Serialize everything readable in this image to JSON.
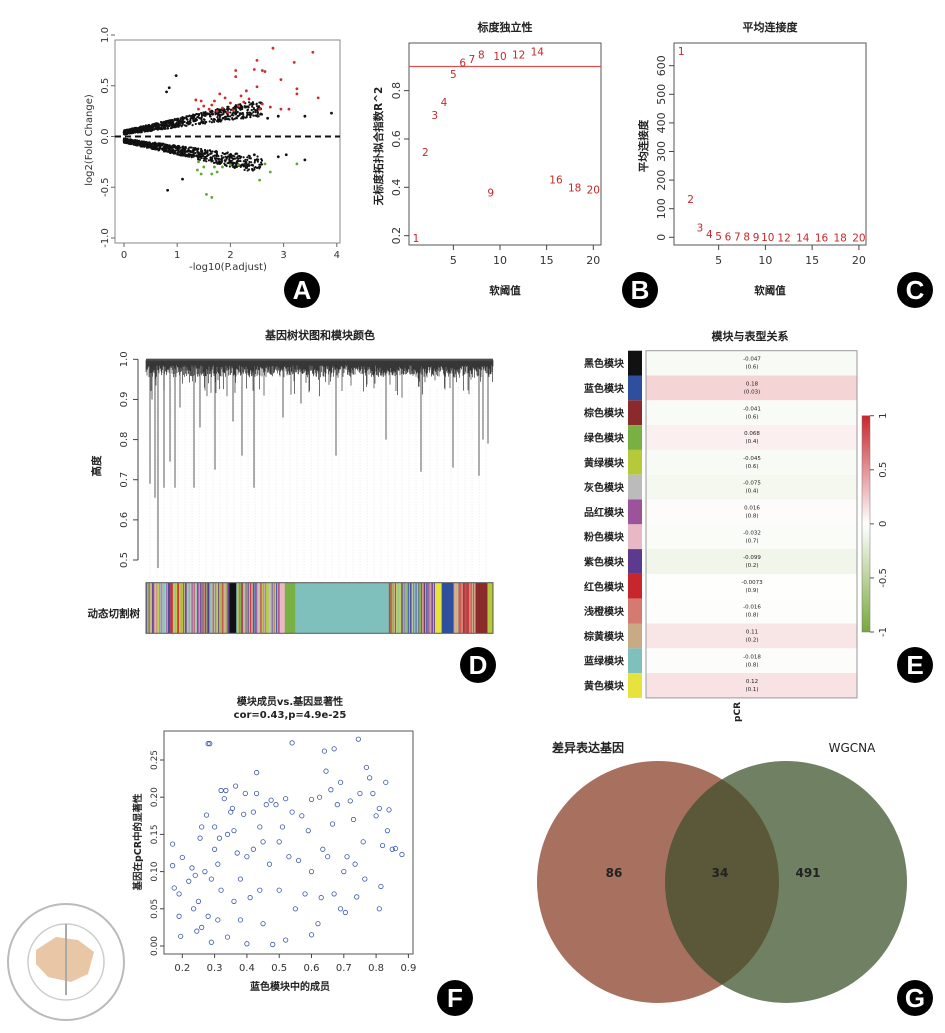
{
  "colors": {
    "red_points": "#d42a2a",
    "green_points": "#5fa832",
    "black_points": "#111111",
    "scatter_points": "#3b57a8",
    "threshold_line": "#d95050",
    "venn_left": "#a8705e",
    "venn_right": "#708062",
    "venn_overlap": "#5a5838"
  },
  "panel_letters": [
    "A",
    "B",
    "C",
    "D",
    "E",
    "F",
    "G"
  ],
  "logo": {
    "text_cn": "中华医学会",
    "text_en": "CHINESE MEDICAL ASSOCIATION",
    "year": "1915"
  },
  "chart_data": [
    {
      "panel": "A",
      "type": "scatter",
      "xlabel": "-log10(P.adjust)",
      "ylabel": "log2(Fold Change)",
      "xlim": [
        0,
        4
      ],
      "ylim": [
        -1.0,
        1.0
      ],
      "xticks": [
        "0",
        "1",
        "2",
        "3",
        "4"
      ],
      "yticks": [
        "-1.0",
        "-0.5",
        "0.0",
        "0.5",
        "1.0"
      ],
      "reference_line": {
        "y": 0,
        "style": "dashed"
      },
      "series": [
        {
          "color": "#d42a2a",
          "points": [
            [
              2.8,
              0.87
            ],
            [
              3.55,
              0.83
            ],
            [
              2.5,
              0.75
            ],
            [
              3.2,
              0.73
            ],
            [
              2.1,
              0.65
            ],
            [
              2.45,
              0.66
            ],
            [
              2.6,
              0.65
            ],
            [
              2.65,
              0.64
            ],
            [
              2.1,
              0.59
            ],
            [
              2.95,
              0.56
            ],
            [
              2.5,
              0.49
            ],
            [
              3.25,
              0.47
            ],
            [
              3.25,
              0.42
            ],
            [
              3.65,
              0.38
            ],
            [
              2.3,
              0.45
            ],
            [
              2.2,
              0.4
            ],
            [
              2.35,
              0.37
            ],
            [
              1.8,
              0.42
            ],
            [
              1.9,
              0.38
            ],
            [
              1.35,
              0.36
            ],
            [
              1.45,
              0.35
            ],
            [
              1.7,
              0.35
            ],
            [
              2.0,
              0.33
            ],
            [
              2.15,
              0.3
            ],
            [
              2.6,
              0.32
            ],
            [
              2.75,
              0.29
            ],
            [
              2.95,
              0.27
            ],
            [
              3.1,
              0.27
            ],
            [
              1.5,
              0.3
            ],
            [
              1.6,
              0.27
            ],
            [
              1.75,
              0.25
            ],
            [
              1.85,
              0.28
            ],
            [
              1.95,
              0.24
            ],
            [
              2.05,
              0.26
            ],
            [
              1.4,
              0.27
            ],
            [
              2.55,
              0.27
            ],
            [
              1.65,
              0.31
            ],
            [
              2.25,
              0.34
            ]
          ]
        },
        {
          "color": "#5fa832",
          "points": [
            [
              1.4,
              -0.25
            ],
            [
              1.5,
              -0.3
            ],
            [
              1.7,
              -0.3
            ],
            [
              1.85,
              -0.3
            ],
            [
              2.0,
              -0.28
            ],
            [
              2.15,
              -0.28
            ],
            [
              1.45,
              -0.37
            ],
            [
              1.65,
              -0.37
            ],
            [
              1.75,
              -0.35
            ],
            [
              2.65,
              -0.27
            ],
            [
              2.55,
              -0.43
            ],
            [
              2.75,
              -0.35
            ],
            [
              3.25,
              -0.27
            ],
            [
              1.55,
              -0.57
            ],
            [
              1.65,
              -0.6
            ],
            [
              1.38,
              -0.33
            ]
          ]
        },
        {
          "color": "#111111",
          "points": [
            [
              0.98,
              0.6
            ],
            [
              0.85,
              0.48
            ],
            [
              0.8,
              0.44
            ],
            [
              3.9,
              0.23
            ],
            [
              3.4,
              0.2
            ],
            [
              0.82,
              -0.53
            ],
            [
              1.1,
              -0.42
            ],
            [
              3.4,
              -0.23
            ],
            [
              2.9,
              0.2
            ],
            [
              2.7,
              0.18
            ],
            [
              2.9,
              -0.2
            ],
            [
              3.05,
              -0.18
            ],
            [
              2.45,
              -0.18
            ]
          ]
        }
      ]
    },
    {
      "panel": "B",
      "type": "scatter",
      "title": "标度独立性",
      "xlabel": "软阈值",
      "ylabel": "无标度拓扑拟合指数R^2",
      "xlim": [
        0,
        21
      ],
      "ylim": [
        0.17,
        0.99
      ],
      "xticks": [
        "5",
        "10",
        "15",
        "20"
      ],
      "yticks": [
        "0.2",
        "0.4",
        "0.6",
        "0.8"
      ],
      "reference_line": {
        "y": 0.9
      },
      "points": [
        [
          1,
          0.19
        ],
        [
          2,
          0.546
        ],
        [
          3,
          0.7
        ],
        [
          4,
          0.754
        ],
        [
          5,
          0.869
        ],
        [
          6,
          0.917
        ],
        [
          7,
          0.931
        ],
        [
          8,
          0.95
        ],
        [
          9,
          0.378
        ],
        [
          10,
          0.943
        ],
        [
          12,
          0.95
        ],
        [
          14,
          0.961
        ],
        [
          16,
          0.432
        ],
        [
          18,
          0.4
        ],
        [
          20,
          0.392
        ]
      ]
    },
    {
      "panel": "C",
      "type": "scatter",
      "title": "平均连接度",
      "xlabel": "软阈值",
      "ylabel": "平均连接度",
      "xlim": [
        0,
        21
      ],
      "ylim": [
        -25,
        680
      ],
      "xticks": [
        "5",
        "10",
        "15",
        "20"
      ],
      "yticks": [
        "0",
        "100",
        "200",
        "300",
        "400",
        "500",
        "600"
      ],
      "points": [
        [
          1,
          652
        ],
        [
          2,
          134
        ],
        [
          3,
          35
        ],
        [
          4,
          12
        ],
        [
          5,
          4
        ],
        [
          6,
          3
        ],
        [
          7,
          2
        ],
        [
          8,
          2
        ],
        [
          9,
          1
        ],
        [
          10,
          1
        ],
        [
          12,
          0
        ],
        [
          14,
          0
        ],
        [
          16,
          0
        ],
        [
          18,
          0
        ],
        [
          20,
          0
        ]
      ]
    },
    {
      "panel": "D",
      "type": "dendrogram",
      "title": "基因树状图和模块颜色",
      "ylabel": "高度",
      "color_row_label": "动态切割树",
      "ylim": [
        0.5,
        1.0
      ],
      "yticks": [
        "0.5",
        "0.6",
        "0.7",
        "0.8",
        "0.9",
        "1.0"
      ]
    },
    {
      "panel": "E",
      "type": "heatmap",
      "title": "模块与表型关系",
      "xlabel": "pCR",
      "color_scale": {
        "min": -1,
        "max": 1,
        "low": "#77a83b",
        "mid": "#ffffff",
        "high": "#c8262d",
        "ticks": [
          "-1",
          "-0.5",
          "0",
          "0.5",
          "1"
        ]
      },
      "rows": [
        {
          "label": "黑色模块",
          "color": "#111111",
          "cor": "-0.047",
          "p": "(0.6)"
        },
        {
          "label": "蓝色模块",
          "color": "#2d4f9e",
          "cor": "0.18",
          "p": "(0.03)"
        },
        {
          "label": "棕色模块",
          "color": "#8b2a2a",
          "cor": "-0.041",
          "p": "(0.6)"
        },
        {
          "label": "绿色模块",
          "color": "#78b043",
          "cor": "0.068",
          "p": "(0.4)"
        },
        {
          "label": "黄绿模块",
          "color": "#b5c93a",
          "cor": "-0.045",
          "p": "(0.6)"
        },
        {
          "label": "灰色模块",
          "color": "#bbbbbb",
          "cor": "-0.075",
          "p": "(0.4)"
        },
        {
          "label": "品红模块",
          "color": "#9b539b",
          "cor": "0.016",
          "p": "(0.8)"
        },
        {
          "label": "粉色模块",
          "color": "#e8b8c4",
          "cor": "-0.032",
          "p": "(0.7)"
        },
        {
          "label": "紫色模块",
          "color": "#5b3a8f",
          "cor": "-0.099",
          "p": "(0.2)"
        },
        {
          "label": "红色模块",
          "color": "#c8262d",
          "cor": "-0.0073",
          "p": "(0.9)"
        },
        {
          "label": "浅橙模块",
          "color": "#d47a70",
          "cor": "-0.016",
          "p": "(0.8)"
        },
        {
          "label": "棕黄模块",
          "color": "#c8ab85",
          "cor": "0.11",
          "p": "(0.2)"
        },
        {
          "label": "蓝绿模块",
          "color": "#7fbfbc",
          "cor": "-0.018",
          "p": "(0.8)"
        },
        {
          "label": "黄色模块",
          "color": "#e8e23c",
          "cor": "0.12",
          "p": "(0.1)"
        }
      ]
    },
    {
      "panel": "F",
      "type": "scatter",
      "title": "模块成员vs.基因显著性",
      "subtitle": "cor=0.43,p=4.9e-25",
      "xlabel": "蓝色模块中的成员",
      "ylabel": "基因在pCR中的显著性",
      "xlim": [
        0.14,
        0.91
      ],
      "ylim": [
        -0.01,
        0.29
      ],
      "xticks": [
        "0.2",
        "0.3",
        "0.4",
        "0.5",
        "0.6",
        "0.7",
        "0.8",
        "0.9"
      ],
      "yticks": [
        "0.00",
        "0.05",
        "0.10",
        "0.15",
        "0.20",
        "0.25"
      ],
      "points": [
        [
          0.17,
          0.137
        ],
        [
          0.17,
          0.108
        ],
        [
          0.175,
          0.078
        ],
        [
          0.19,
          0.07
        ],
        [
          0.19,
          0.04
        ],
        [
          0.195,
          0.013
        ],
        [
          0.2,
          0.119
        ],
        [
          0.22,
          0.087
        ],
        [
          0.23,
          0.105
        ],
        [
          0.235,
          0.05
        ],
        [
          0.24,
          0.095
        ],
        [
          0.245,
          0.02
        ],
        [
          0.25,
          0.06
        ],
        [
          0.255,
          0.145
        ],
        [
          0.26,
          0.16
        ],
        [
          0.26,
          0.025
        ],
        [
          0.27,
          0.1
        ],
        [
          0.275,
          0.176
        ],
        [
          0.28,
          0.272
        ],
        [
          0.285,
          0.272
        ],
        [
          0.28,
          0.04
        ],
        [
          0.29,
          0.005
        ],
        [
          0.29,
          0.09
        ],
        [
          0.3,
          0.16
        ],
        [
          0.3,
          0.13
        ],
        [
          0.31,
          0.11
        ],
        [
          0.31,
          0.035
        ],
        [
          0.315,
          0.145
        ],
        [
          0.32,
          0.209
        ],
        [
          0.32,
          0.075
        ],
        [
          0.33,
          0.198
        ],
        [
          0.335,
          0.209
        ],
        [
          0.34,
          0.15
        ],
        [
          0.34,
          0.012
        ],
        [
          0.35,
          0.18
        ],
        [
          0.355,
          0.185
        ],
        [
          0.36,
          0.155
        ],
        [
          0.36,
          0.06
        ],
        [
          0.365,
          0.215
        ],
        [
          0.37,
          0.125
        ],
        [
          0.38,
          0.09
        ],
        [
          0.38,
          0.035
        ],
        [
          0.39,
          0.177
        ],
        [
          0.395,
          0.205
        ],
        [
          0.4,
          0.12
        ],
        [
          0.4,
          0.003
        ],
        [
          0.41,
          0.065
        ],
        [
          0.42,
          0.13
        ],
        [
          0.42,
          0.18
        ],
        [
          0.43,
          0.233
        ],
        [
          0.43,
          0.205
        ],
        [
          0.44,
          0.16
        ],
        [
          0.44,
          0.075
        ],
        [
          0.45,
          0.14
        ],
        [
          0.45,
          0.03
        ],
        [
          0.46,
          0.19
        ],
        [
          0.47,
          0.11
        ],
        [
          0.475,
          0.196
        ],
        [
          0.48,
          0.002
        ],
        [
          0.49,
          0.19
        ],
        [
          0.5,
          0.075
        ],
        [
          0.5,
          0.14
        ],
        [
          0.51,
          0.16
        ],
        [
          0.52,
          0.198
        ],
        [
          0.52,
          0.008
        ],
        [
          0.53,
          0.12
        ],
        [
          0.54,
          0.273
        ],
        [
          0.54,
          0.18
        ],
        [
          0.55,
          0.05
        ],
        [
          0.56,
          0.115
        ],
        [
          0.57,
          0.175
        ],
        [
          0.58,
          0.07
        ],
        [
          0.59,
          0.155
        ],
        [
          0.6,
          0.197
        ],
        [
          0.6,
          0.1
        ],
        [
          0.6,
          0.015
        ],
        [
          0.62,
          0.03
        ],
        [
          0.625,
          0.2
        ],
        [
          0.63,
          0.065
        ],
        [
          0.635,
          0.13
        ],
        [
          0.64,
          0.262
        ],
        [
          0.645,
          0.235
        ],
        [
          0.65,
          0.12
        ],
        [
          0.66,
          0.21
        ],
        [
          0.665,
          0.164
        ],
        [
          0.67,
          0.265
        ],
        [
          0.67,
          0.07
        ],
        [
          0.68,
          0.19
        ],
        [
          0.69,
          0.22
        ],
        [
          0.69,
          0.05
        ],
        [
          0.7,
          0.1
        ],
        [
          0.705,
          0.045
        ],
        [
          0.71,
          0.12
        ],
        [
          0.72,
          0.195
        ],
        [
          0.73,
          0.17
        ],
        [
          0.735,
          0.11
        ],
        [
          0.74,
          0.066
        ],
        [
          0.745,
          0.278
        ],
        [
          0.75,
          0.205
        ],
        [
          0.76,
          0.14
        ],
        [
          0.765,
          0.09
        ],
        [
          0.77,
          0.24
        ],
        [
          0.78,
          0.226
        ],
        [
          0.79,
          0.205
        ],
        [
          0.8,
          0.175
        ],
        [
          0.81,
          0.185
        ],
        [
          0.81,
          0.05
        ],
        [
          0.815,
          0.08
        ],
        [
          0.82,
          0.135
        ],
        [
          0.83,
          0.22
        ],
        [
          0.835,
          0.155
        ],
        [
          0.84,
          0.183
        ],
        [
          0.85,
          0.13
        ],
        [
          0.86,
          0.131
        ],
        [
          0.88,
          0.123
        ]
      ]
    },
    {
      "panel": "G",
      "type": "venn",
      "sets": [
        {
          "name": "差异表达基因",
          "only": "86"
        },
        {
          "name": "WGCNA",
          "only": "491"
        }
      ],
      "intersection": "34"
    }
  ]
}
